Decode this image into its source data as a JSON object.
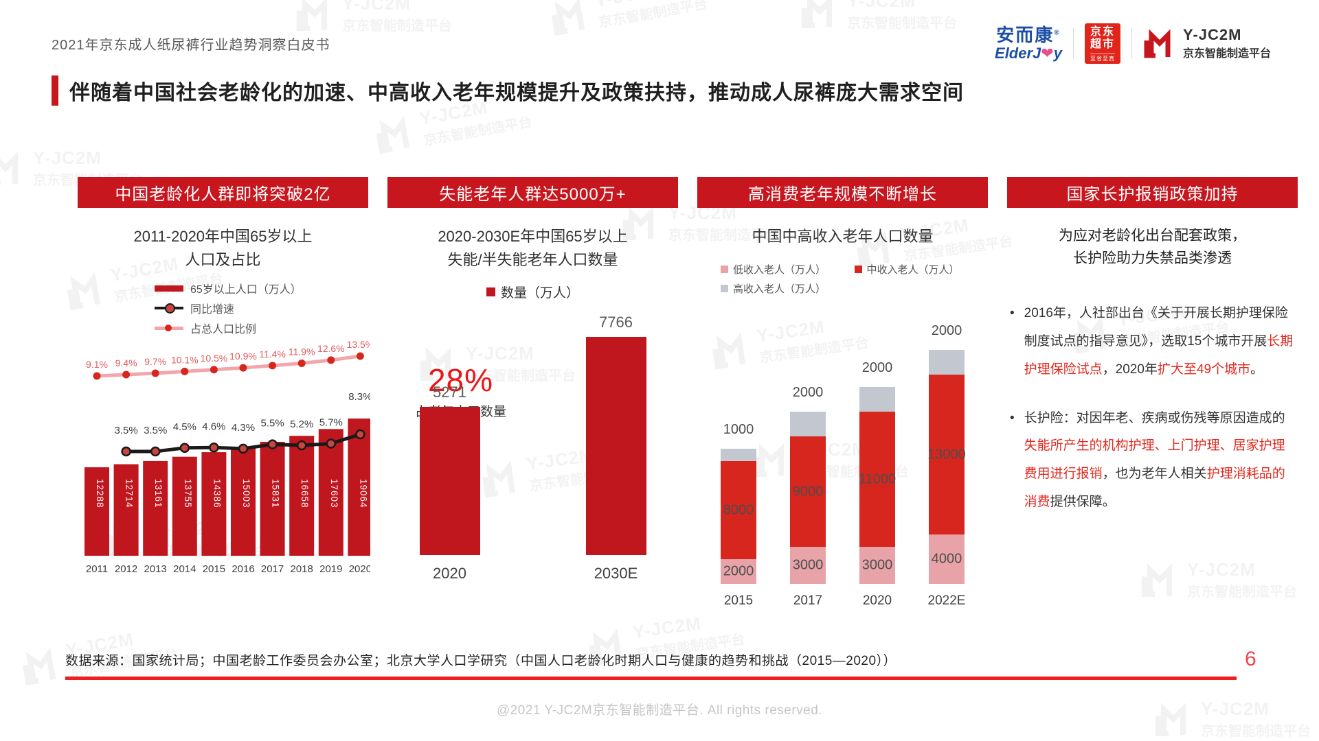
{
  "page": {
    "doc_title": "2021年京东成人纸尿裤行业趋势洞察白皮书",
    "main_title": "伴随着中国社会老龄化的加速、中高收入老年规模提升及政策扶持，推动成人尿裤庞大需求空间",
    "page_number": "6",
    "source_note": "数据来源：国家统计局；中国老龄工作委员会办公室；北京大学人口学研究（中国人口老龄化时期人口与健康的趋势和挑战（2015—2020））",
    "copyright": "@2021 Y-JC2M京东智能制造平台. All rights reserved.",
    "watermark_line1": "Y-JC2M",
    "watermark_line2": "京东智能制造平台"
  },
  "logos": {
    "elderjoy_cn": "安而康",
    "elderjoy_reg": "®",
    "elderjoy_en_pre": "ElderJ",
    "elderjoy_en_heart": "❤",
    "elderjoy_en_post": "y",
    "jd_market_line1": "京东",
    "jd_market_line2": "超市",
    "jd_market_sub": "至省至真",
    "jc2m_name": "Y-JC2M",
    "jc2m_sub": "京东智能制造平台"
  },
  "colors": {
    "banner_red": "#C8161E",
    "bar_dark_red": "#C0161E",
    "bright_red": "#EE1414",
    "mid_income_red": "#D7261E",
    "low_income_pink": "#E8A3A8",
    "high_income_gray": "#C3C7CF",
    "line_black": "#1A1A1A",
    "line_pink": "#F2A6AA"
  },
  "sections": [
    {
      "banner": "中国老龄化人群即将突破2亿"
    },
    {
      "banner": "失能老年人群达5000万+"
    },
    {
      "banner": "高消费老年规模不断增长"
    },
    {
      "banner": "国家长护报销政策加持"
    }
  ],
  "chart_data": [
    {
      "type": "bar+line",
      "title_lines": [
        "2011-2020年中国65岁以上",
        "人口及占比"
      ],
      "categories": [
        "2011",
        "2012",
        "2013",
        "2014",
        "2015",
        "2016",
        "2017",
        "2018",
        "2019",
        "2020"
      ],
      "series": [
        {
          "name": "65岁以上人口（万人）",
          "type": "bar",
          "color": "#C0161E",
          "values": [
            12288,
            12714,
            13161,
            13755,
            14386,
            15003,
            15831,
            16658,
            17603,
            19064
          ]
        },
        {
          "name": "同比增速",
          "type": "line",
          "color": "#1A1A1A",
          "unit": "%",
          "values": [
            null,
            3.5,
            3.5,
            4.5,
            4.6,
            4.3,
            5.5,
            5.2,
            5.7,
            8.3
          ]
        },
        {
          "name": "占总人口比例",
          "type": "line",
          "color": "#F2A6AA",
          "unit": "%",
          "values": [
            9.1,
            9.4,
            9.7,
            10.1,
            10.5,
            10.9,
            11.4,
            11.9,
            12.6,
            13.5
          ]
        }
      ],
      "legend_position": "top",
      "grid": false
    },
    {
      "type": "bar",
      "title_lines": [
        "2020-2030E年中国65岁以上",
        "失能/半失能老年人口数量"
      ],
      "legend_label": "数量（万人）",
      "categories": [
        "2020",
        "2030E"
      ],
      "values": [
        5271,
        7766
      ],
      "bar_color": "#C0161E",
      "annotation": {
        "big": "28%",
        "sub": "占老年人口数量"
      },
      "grid": false
    },
    {
      "type": "stacked-bar",
      "title": "中国中高收入老年人口数量",
      "categories": [
        "2015",
        "2017",
        "2020",
        "2022E"
      ],
      "series": [
        {
          "name": "低收入老人（万人）",
          "color": "#E8A3A8",
          "values": [
            2000,
            3000,
            3000,
            4000
          ]
        },
        {
          "name": "中收入老人（万人）",
          "color": "#D7261E",
          "values": [
            8000,
            9000,
            11000,
            13000
          ]
        },
        {
          "name": "高收入老人（万人）",
          "color": "#C3C7CF",
          "values": [
            1000,
            2000,
            2000,
            2000
          ]
        }
      ],
      "legend_position": "top",
      "grid": false
    }
  ],
  "policy": {
    "subtitle_lines": [
      "为应对老龄化出台配套政策，",
      "长护险助力失禁品类渗透"
    ],
    "bullets": [
      {
        "parts": [
          {
            "t": "2016年，人社部出台《关于开展长期护理保险制度试点的指导意见》，选取15个城市开展"
          },
          {
            "t": "长期护理保险试点",
            "red": true
          },
          {
            "t": "，2020年"
          },
          {
            "t": "扩大至49个城市",
            "red": true
          },
          {
            "t": "。"
          }
        ]
      },
      {
        "parts": [
          {
            "t": "长护险：对因年老、疾病或伤残等原因造成的"
          },
          {
            "t": "失能所产生的机构护理、上门护理、居家护理费用进行报销",
            "red": true
          },
          {
            "t": "，也为老年人相关"
          },
          {
            "t": "护理消耗品的消费",
            "red": true
          },
          {
            "t": "提供保障。"
          }
        ]
      }
    ]
  }
}
